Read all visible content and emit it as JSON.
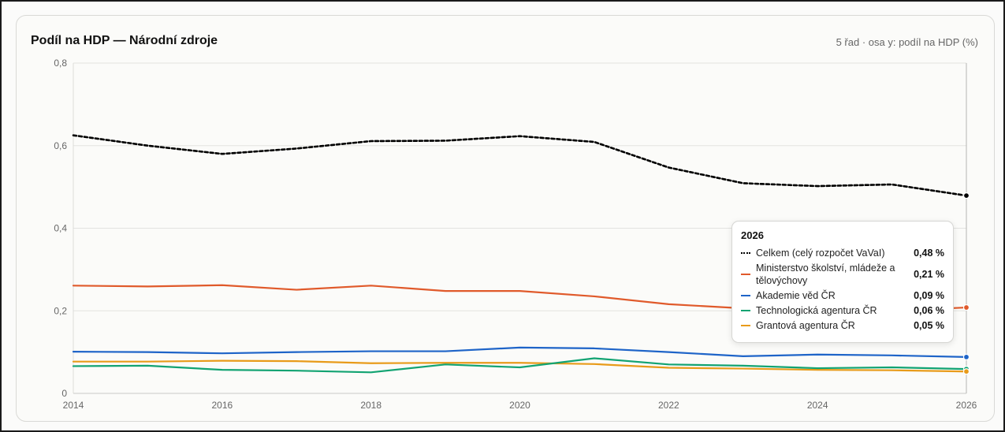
{
  "title": "Podíl na HDP — Národní zdroje",
  "subtitle": "5 řad · osa y: podíl na HDP (%)",
  "tooltip": {
    "title": "2026",
    "rows": [
      {
        "label": "Celkem (celý rozpočet VaVaI)",
        "value": "0,48 %",
        "color": "#000000",
        "dashed": true
      },
      {
        "label": "Ministerstvo školství, mládeže a tělovýchovy",
        "value": "0,21 %",
        "color": "#e05a2b",
        "dashed": false
      },
      {
        "label": "Akademie věd ČR",
        "value": "0,09 %",
        "color": "#1e64c8",
        "dashed": false
      },
      {
        "label": "Technologická agentura ČR",
        "value": "0,06 %",
        "color": "#12a372",
        "dashed": false
      },
      {
        "label": "Grantová agentura ČR",
        "value": "0,05 %",
        "color": "#e89b1a",
        "dashed": false
      }
    ]
  },
  "chart_data": {
    "type": "line",
    "x": [
      2014,
      2015,
      2016,
      2017,
      2018,
      2019,
      2020,
      2021,
      2022,
      2023,
      2024,
      2025,
      2026
    ],
    "x_ticks": [
      "2014",
      "2016",
      "2018",
      "2020",
      "2022",
      "2024",
      "2026"
    ],
    "x_tick_values": [
      2014,
      2016,
      2018,
      2020,
      2022,
      2024,
      2026
    ],
    "y_ticks": [
      "0",
      "0,2",
      "0,4",
      "0,6",
      "0,8"
    ],
    "y_tick_values": [
      0,
      0.2,
      0.4,
      0.6,
      0.8
    ],
    "xlim": [
      2014,
      2026
    ],
    "ylim": [
      0,
      0.8
    ],
    "grid": true,
    "highlight_x": 2026,
    "series": [
      {
        "name": "Celkem (celý rozpočet VaVaI)",
        "color": "#000000",
        "dashed": true,
        "values": [
          0.625,
          0.6,
          0.58,
          0.593,
          0.611,
          0.612,
          0.623,
          0.609,
          0.547,
          0.509,
          0.502,
          0.506,
          0.479
        ]
      },
      {
        "name": "Ministerstvo školství, mládeže a tělovýchovy",
        "color": "#e05a2b",
        "dashed": false,
        "values": [
          0.261,
          0.259,
          0.262,
          0.251,
          0.261,
          0.248,
          0.248,
          0.235,
          0.216,
          0.206,
          0.201,
          0.2,
          0.208
        ]
      },
      {
        "name": "Akademie věd ČR",
        "color": "#1e64c8",
        "dashed": false,
        "values": [
          0.101,
          0.1,
          0.097,
          0.1,
          0.102,
          0.102,
          0.111,
          0.109,
          0.1,
          0.09,
          0.094,
          0.092,
          0.088
        ]
      },
      {
        "name": "Technologická agentura ČR",
        "color": "#12a372",
        "dashed": false,
        "values": [
          0.066,
          0.067,
          0.057,
          0.055,
          0.051,
          0.07,
          0.063,
          0.085,
          0.07,
          0.067,
          0.061,
          0.063,
          0.059
        ]
      },
      {
        "name": "Grantová agentura ČR",
        "color": "#e89b1a",
        "dashed": false,
        "values": [
          0.077,
          0.077,
          0.079,
          0.078,
          0.073,
          0.074,
          0.074,
          0.071,
          0.062,
          0.06,
          0.057,
          0.056,
          0.053
        ]
      }
    ]
  }
}
